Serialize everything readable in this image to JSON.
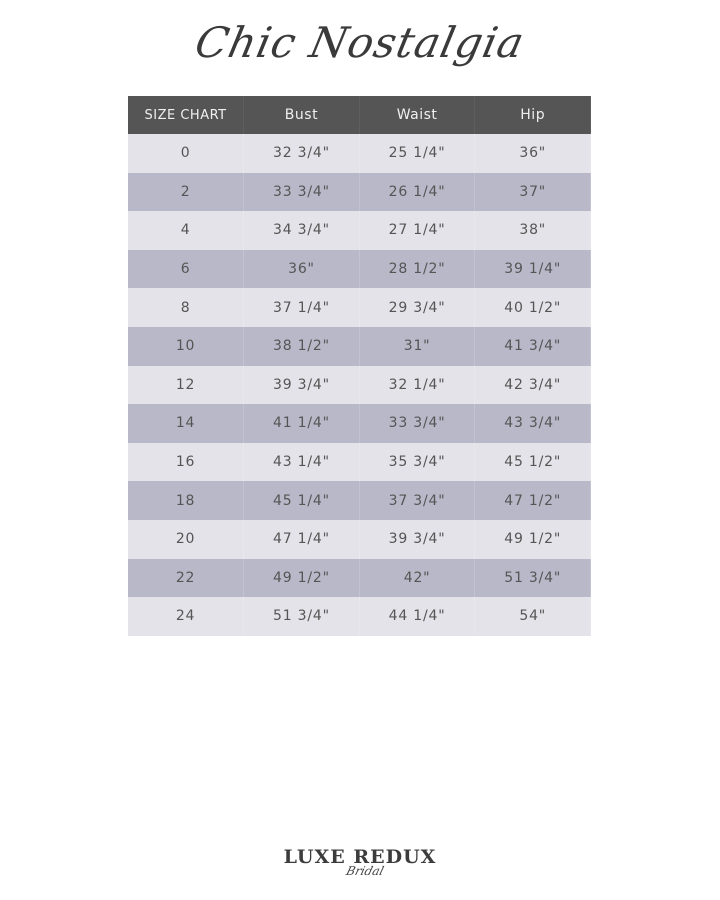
{
  "title": "Chic Nostalgia",
  "table": {
    "headers": [
      "SIZE CHART",
      "Bust",
      "Waist",
      "Hip"
    ],
    "rows": [
      [
        "0",
        "32 3/4\"",
        "25 1/4\"",
        "36\""
      ],
      [
        "2",
        "33 3/4\"",
        "26 1/4\"",
        "37\""
      ],
      [
        "4",
        "34 3/4\"",
        "27 1/4\"",
        "38\""
      ],
      [
        "6",
        "36\"",
        "28 1/2\"",
        "39 1/4\""
      ],
      [
        "8",
        "37 1/4\"",
        "29 3/4\"",
        "40 1/2\""
      ],
      [
        "10",
        "38 1/2\"",
        "31\"",
        "41 3/4\""
      ],
      [
        "12",
        "39 3/4\"",
        "32 1/4\"",
        "42 3/4\""
      ],
      [
        "14",
        "41 1/4\"",
        "33 3/4\"",
        "43 3/4\""
      ],
      [
        "16",
        "43 1/4\"",
        "35 3/4\"",
        "45 1/2\""
      ],
      [
        "18",
        "45 1/4\"",
        "37 3/4\"",
        "47 1/2\""
      ],
      [
        "20",
        "47 1/4\"",
        "39 3/4\"",
        "49 1/2\""
      ],
      [
        "22",
        "49 1/2\"",
        "42\"",
        "51 3/4\""
      ],
      [
        "24",
        "51 3/4\"",
        "44 1/4\"",
        "54\""
      ]
    ]
  },
  "logo": {
    "main": "LUXE REDUX",
    "sub": "Bridal"
  },
  "colors": {
    "header_bg": "#555555",
    "row_light": "#e4e3ea",
    "row_dark": "#b9b8c9"
  }
}
